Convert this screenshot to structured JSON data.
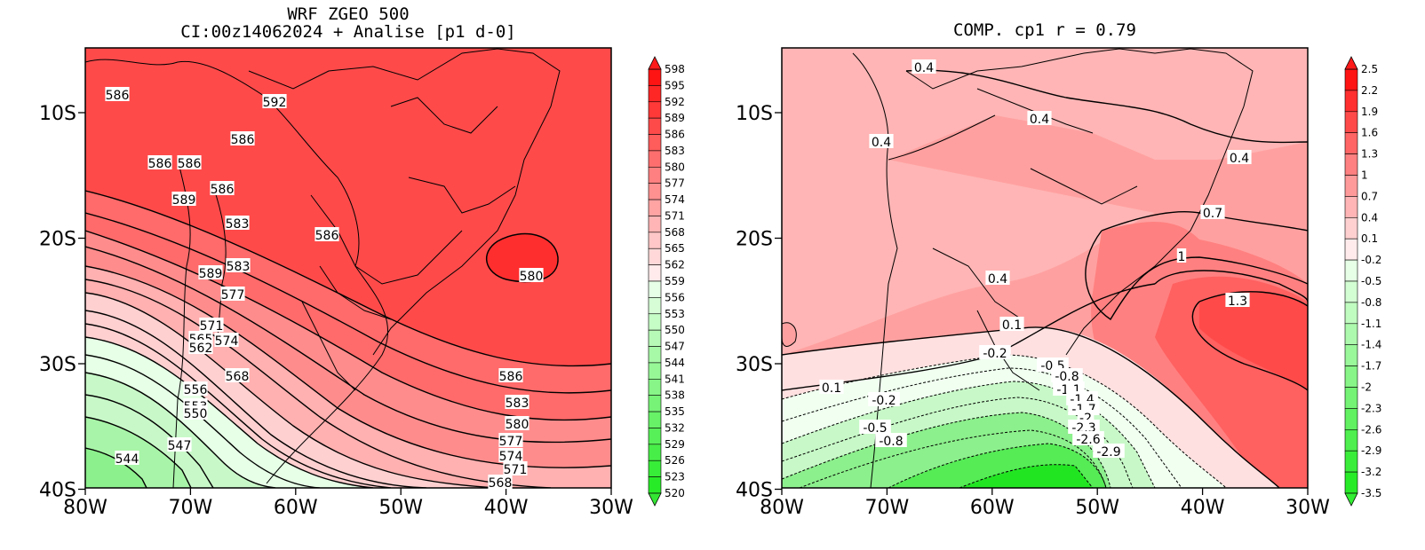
{
  "panels": [
    {
      "id": "left",
      "title_lines": [
        "WRF ZGEO 500",
        "CI:00z14062024 + Analise  [p1 d-0]"
      ],
      "x_ticks": [
        "80W",
        "70W",
        "60W",
        "50W",
        "40W",
        "30W"
      ],
      "y_ticks": [
        "10S",
        "20S",
        "30S",
        "40S"
      ],
      "colorbar": {
        "levels": [
          "598",
          "595",
          "592",
          "589",
          "586",
          "583",
          "580",
          "577",
          "574",
          "571",
          "568",
          "565",
          "562",
          "559",
          "556",
          "553",
          "550",
          "547",
          "544",
          "541",
          "538",
          "535",
          "532",
          "529",
          "526",
          "523",
          "520"
        ],
        "arrow_top_color": "#ff1a1a",
        "arrow_bottom_color": "#33e633"
      },
      "contour_labels": [
        "586",
        "592",
        "586",
        "586",
        "586",
        "586",
        "589",
        "583",
        "586",
        "583",
        "580",
        "589",
        "577",
        "571",
        "565",
        "574",
        "562",
        "568",
        "556",
        "553",
        "550",
        "547",
        "544",
        "586",
        "583",
        "580",
        "577",
        "574",
        "571",
        "568"
      ]
    },
    {
      "id": "right",
      "title_lines": [
        "COMP. cp1  r =  0.79"
      ],
      "x_ticks": [
        "80W",
        "70W",
        "60W",
        "50W",
        "40W",
        "30W"
      ],
      "y_ticks": [
        "10S",
        "20S",
        "30S",
        "40S"
      ],
      "colorbar": {
        "levels": [
          "2.5",
          "2.2",
          "1.9",
          "1.6",
          "1.3",
          "1",
          "0.7",
          "0.4",
          "0.1",
          "-0.2",
          "-0.5",
          "-0.8",
          "-1.1",
          "-1.4",
          "-1.7",
          "-2",
          "-2.3",
          "-2.6",
          "-2.9",
          "-3.2",
          "-3.5"
        ],
        "arrow_top_color": "#ff1a1a",
        "arrow_bottom_color": "#33ee33"
      },
      "contour_labels": [
        "0.4",
        "0.4",
        "0.4",
        "0.4",
        "0.7",
        "1",
        "0.4",
        "1.3",
        "0.1",
        "-0.2",
        "0.1",
        "-0.2",
        "-0.5",
        "-0.8",
        "-0.5",
        "-0.8",
        "-1.1",
        "-1.4",
        "-1.7",
        "-2",
        "-2.3",
        "-2.6",
        "-2.9"
      ]
    }
  ]
}
